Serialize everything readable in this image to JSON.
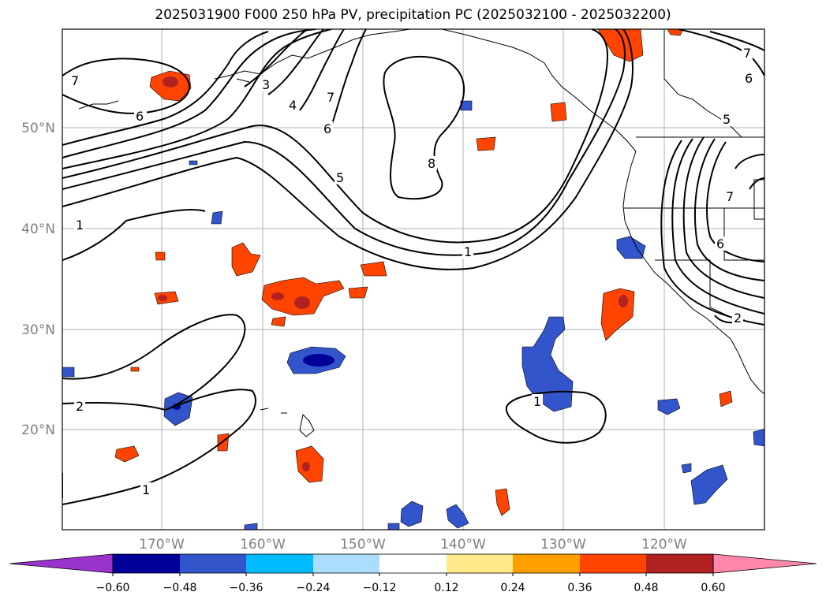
{
  "title": "2025031900 F000 250 hPa PV, precipitation PC (2025032100 - 2025032200)",
  "axes": {
    "lat_labels": [
      "50°N",
      "40°N",
      "30°N",
      "20°N"
    ],
    "lon_labels": [
      "170°W",
      "160°W",
      "150°W",
      "140°W",
      "130°W",
      "120°W"
    ]
  },
  "colorbar": {
    "colors": [
      "#9933cc",
      "#000099",
      "#3355cc",
      "#00bbff",
      "#aaddff",
      "#ffffff",
      "#ffe98a",
      "#ffa000",
      "#ff4400",
      "#b22222",
      "#ff88aa"
    ],
    "tick_labels": [
      "−0.60",
      "−0.48",
      "−0.36",
      "−0.24",
      "−0.12",
      "0.12",
      "0.24",
      "0.36",
      "0.48",
      "0.60"
    ]
  },
  "contour_labels": [
    "7",
    "6",
    "3",
    "4",
    "7",
    "6",
    "5",
    "8",
    "1",
    "1",
    "7",
    "6",
    "5",
    "7",
    "6",
    "2",
    "2",
    "1",
    "1"
  ]
}
